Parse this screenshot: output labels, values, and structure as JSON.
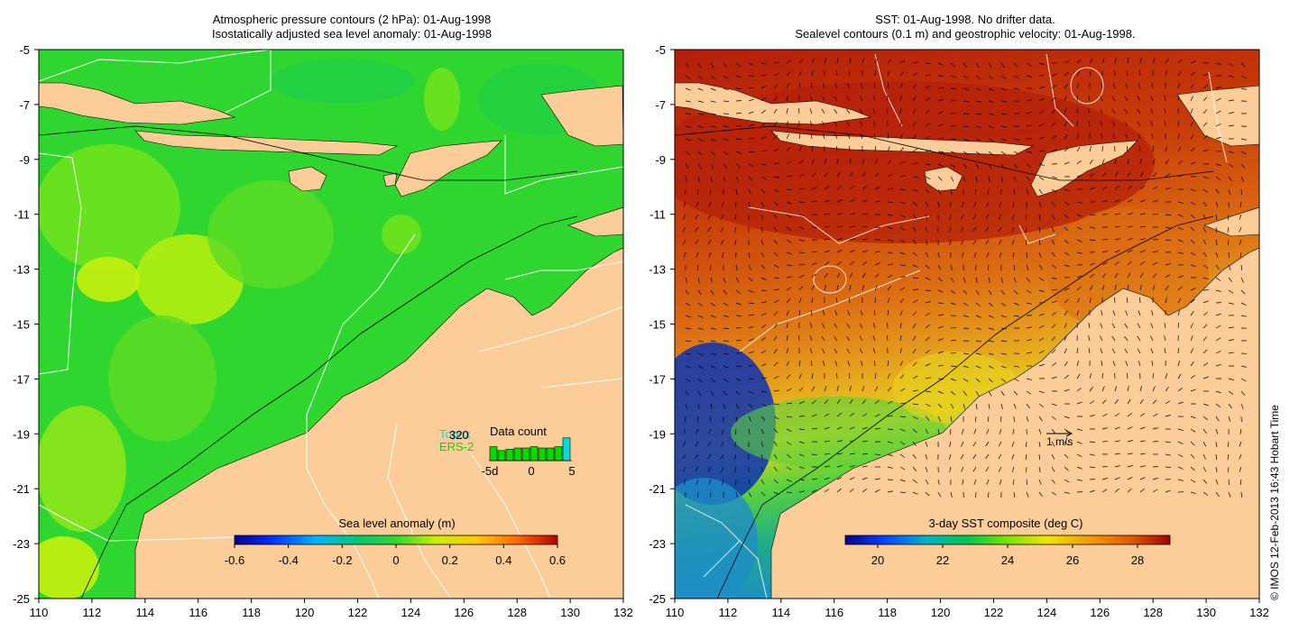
{
  "left_panel": {
    "title_line1": "Atmospheric pressure contours (2 hPa): 01-Aug-1998",
    "title_line2": "Isostatically adjusted sea level anomaly: 01-Aug-1998",
    "x_ticks": [
      "110",
      "112",
      "114",
      "116",
      "118",
      "120",
      "122",
      "124",
      "126",
      "128",
      "130",
      "132"
    ],
    "y_ticks": [
      "-5",
      "-7",
      "-9",
      "-11",
      "-13",
      "-15",
      "-17",
      "-19",
      "-21",
      "-23",
      "-25"
    ],
    "colorbar": {
      "title": "Sea level anomaly (m)",
      "range": [
        -0.6,
        0.6
      ],
      "tick_labels": [
        "-0.6",
        "-0.4",
        "-0.2",
        "0",
        "0.2",
        "0.4",
        "0.6"
      ]
    },
    "inset": {
      "title": "Data count",
      "satellite_1": "Topex",
      "satellite_1_count": "320",
      "satellite_2": "ERS-2",
      "x_labels": [
        "-5d",
        "0",
        "5"
      ],
      "bar_levels": [
        0.55,
        0.4,
        0.45,
        0.5,
        0.5,
        0.55,
        0.5,
        0.5,
        0.55,
        0.9
      ]
    },
    "colors": {
      "ocean": "#2fd62f",
      "land": "#fccc99",
      "contour_white": "#ffffff"
    }
  },
  "right_panel": {
    "title_line1": "SST: 01-Aug-1998. No drifter data.",
    "title_line2": "Sealevel contours (0.1 m) and geostrophic velocity: 01-Aug-1998.",
    "x_ticks": [
      "110",
      "112",
      "114",
      "116",
      "118",
      "120",
      "122",
      "124",
      "126",
      "128",
      "130",
      "132"
    ],
    "y_ticks": [
      "-5",
      "-7",
      "-9",
      "-11",
      "-13",
      "-15",
      "-17",
      "-19",
      "-21",
      "-23",
      "-25"
    ],
    "colorbar": {
      "title": "3-day SST composite (deg C)",
      "range": [
        19,
        29
      ],
      "tick_labels": [
        "20",
        "22",
        "24",
        "26",
        "28"
      ]
    },
    "velocity_scale_label": "1 m/s",
    "colors": {
      "warm": "#c83c0a",
      "land": "#fccc99"
    }
  },
  "credit": "© IMOS 12-Feb-2013 16:43 Hobart Time"
}
